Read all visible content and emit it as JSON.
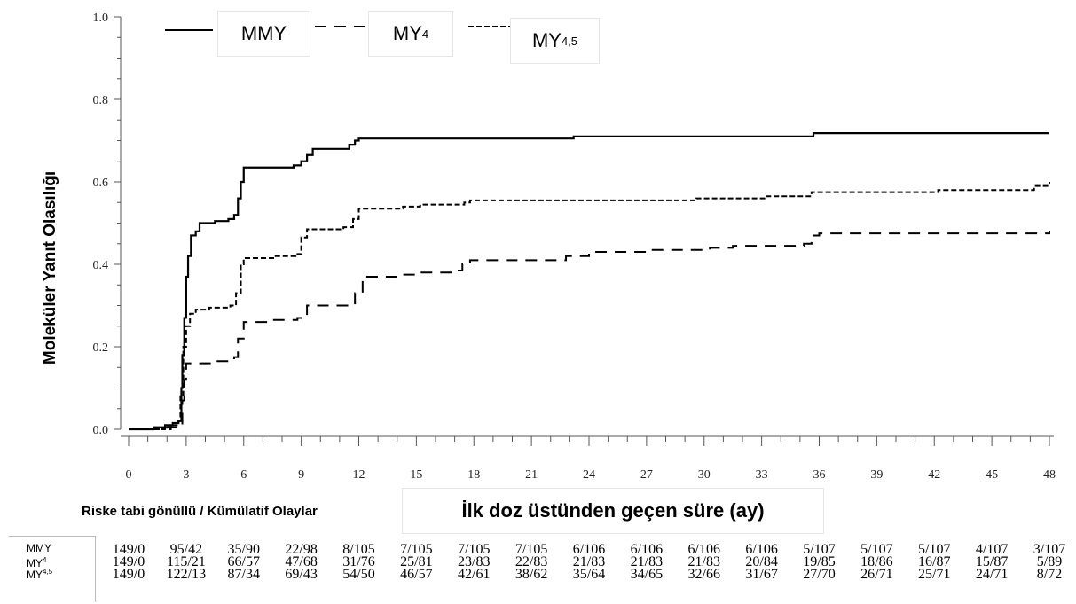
{
  "chart_data": {
    "type": "line",
    "title": "",
    "xlabel": "İlk doz üstünden geçen süre (ay)",
    "ylabel": "Moleküler Yanıt Olasılığı",
    "xlim": [
      0,
      48
    ],
    "ylim": [
      0,
      1
    ],
    "x_ticks": [
      "0",
      "3",
      "6",
      "9",
      "12",
      "15",
      "18",
      "21",
      "24",
      "27",
      "30",
      "33",
      "36",
      "39",
      "42",
      "45",
      "48"
    ],
    "y_ticks": [
      "0.0",
      "0.2",
      "0.4",
      "0.6",
      "0.8",
      "1.0"
    ],
    "grid": false,
    "legend_position": "top-left",
    "series": [
      {
        "name": "MMY",
        "name_sup": "",
        "style": "solid",
        "points": [
          [
            0,
            0
          ],
          [
            1,
            0
          ],
          [
            1.3,
            0.005
          ],
          [
            1.9,
            0.01
          ],
          [
            2.3,
            0.015
          ],
          [
            2.6,
            0.02
          ],
          [
            2.75,
            0.1
          ],
          [
            2.8,
            0.18
          ],
          [
            2.9,
            0.27
          ],
          [
            3.0,
            0.37
          ],
          [
            3.1,
            0.42
          ],
          [
            3.25,
            0.47
          ],
          [
            3.5,
            0.48
          ],
          [
            3.7,
            0.5
          ],
          [
            4.5,
            0.505
          ],
          [
            5.2,
            0.51
          ],
          [
            5.5,
            0.52
          ],
          [
            5.7,
            0.56
          ],
          [
            5.85,
            0.6
          ],
          [
            6.0,
            0.635
          ],
          [
            8.6,
            0.64
          ],
          [
            9.0,
            0.65
          ],
          [
            9.3,
            0.665
          ],
          [
            9.6,
            0.68
          ],
          [
            11.5,
            0.69
          ],
          [
            11.8,
            0.7
          ],
          [
            12.0,
            0.705
          ],
          [
            23.2,
            0.71
          ],
          [
            35.7,
            0.718
          ],
          [
            48,
            0.718
          ]
        ]
      },
      {
        "name": "MY",
        "name_sup": "4",
        "style": "dashed",
        "points": [
          [
            0,
            0
          ],
          [
            1,
            0
          ],
          [
            2,
            0.005
          ],
          [
            2.7,
            0.01
          ],
          [
            2.8,
            0.07
          ],
          [
            2.9,
            0.12
          ],
          [
            3.0,
            0.16
          ],
          [
            4.5,
            0.165
          ],
          [
            5.2,
            0.17
          ],
          [
            5.5,
            0.175
          ],
          [
            5.7,
            0.22
          ],
          [
            6.0,
            0.26
          ],
          [
            7.4,
            0.265
          ],
          [
            8.8,
            0.27
          ],
          [
            9.3,
            0.3
          ],
          [
            11.4,
            0.305
          ],
          [
            11.8,
            0.33
          ],
          [
            12.2,
            0.37
          ],
          [
            14.3,
            0.375
          ],
          [
            15.2,
            0.38
          ],
          [
            16.8,
            0.385
          ],
          [
            17.4,
            0.4
          ],
          [
            17.8,
            0.41
          ],
          [
            22.8,
            0.42
          ],
          [
            24.0,
            0.43
          ],
          [
            27.0,
            0.435
          ],
          [
            30.3,
            0.44
          ],
          [
            31.5,
            0.445
          ],
          [
            35.2,
            0.45
          ],
          [
            35.6,
            0.47
          ],
          [
            36.0,
            0.475
          ],
          [
            48,
            0.48
          ]
        ]
      },
      {
        "name": "MY",
        "name_sup": "4,5",
        "style": "dotted",
        "points": [
          [
            0,
            0
          ],
          [
            1,
            0
          ],
          [
            2.2,
            0.01
          ],
          [
            2.6,
            0.02
          ],
          [
            2.7,
            0.08
          ],
          [
            2.85,
            0.2
          ],
          [
            3.0,
            0.25
          ],
          [
            3.2,
            0.28
          ],
          [
            3.5,
            0.29
          ],
          [
            4.2,
            0.295
          ],
          [
            5.3,
            0.3
          ],
          [
            5.6,
            0.33
          ],
          [
            5.85,
            0.4
          ],
          [
            6.0,
            0.415
          ],
          [
            7.6,
            0.42
          ],
          [
            8.7,
            0.425
          ],
          [
            9.0,
            0.465
          ],
          [
            9.3,
            0.485
          ],
          [
            11.2,
            0.49
          ],
          [
            11.7,
            0.51
          ],
          [
            12.0,
            0.535
          ],
          [
            14.3,
            0.54
          ],
          [
            15.2,
            0.545
          ],
          [
            17.5,
            0.55
          ],
          [
            17.8,
            0.555
          ],
          [
            29.6,
            0.56
          ],
          [
            33.2,
            0.565
          ],
          [
            35.6,
            0.575
          ],
          [
            42.2,
            0.58
          ],
          [
            47.2,
            0.59
          ],
          [
            48,
            0.6
          ]
        ]
      }
    ]
  },
  "risk_table": {
    "title": "Riske tabi gönüllü / Kümülatif Olaylar",
    "rows": [
      {
        "name": "MMY",
        "name_sup": "",
        "values": [
          "149/0",
          "95/42",
          "35/90",
          "22/98",
          "8/105",
          "7/105",
          "7/105",
          "7/105",
          "6/106",
          "6/106",
          "6/106",
          "6/106",
          "5/107",
          "5/107",
          "5/107",
          "4/107",
          "3/107"
        ]
      },
      {
        "name": "MY",
        "name_sup": "4",
        "values": [
          "149/0",
          "115/21",
          "66/57",
          "47/68",
          "31/76",
          "25/81",
          "23/83",
          "22/83",
          "21/83",
          "21/83",
          "21/83",
          "20/84",
          "19/85",
          "18/86",
          "16/87",
          "15/87",
          "5/89"
        ]
      },
      {
        "name": "MY",
        "name_sup": "4,5",
        "values": [
          "149/0",
          "122/13",
          "87/34",
          "69/43",
          "54/50",
          "46/57",
          "42/61",
          "38/62",
          "35/64",
          "34/65",
          "32/66",
          "31/67",
          "27/70",
          "26/71",
          "25/71",
          "24/71",
          "8/72"
        ]
      }
    ]
  }
}
